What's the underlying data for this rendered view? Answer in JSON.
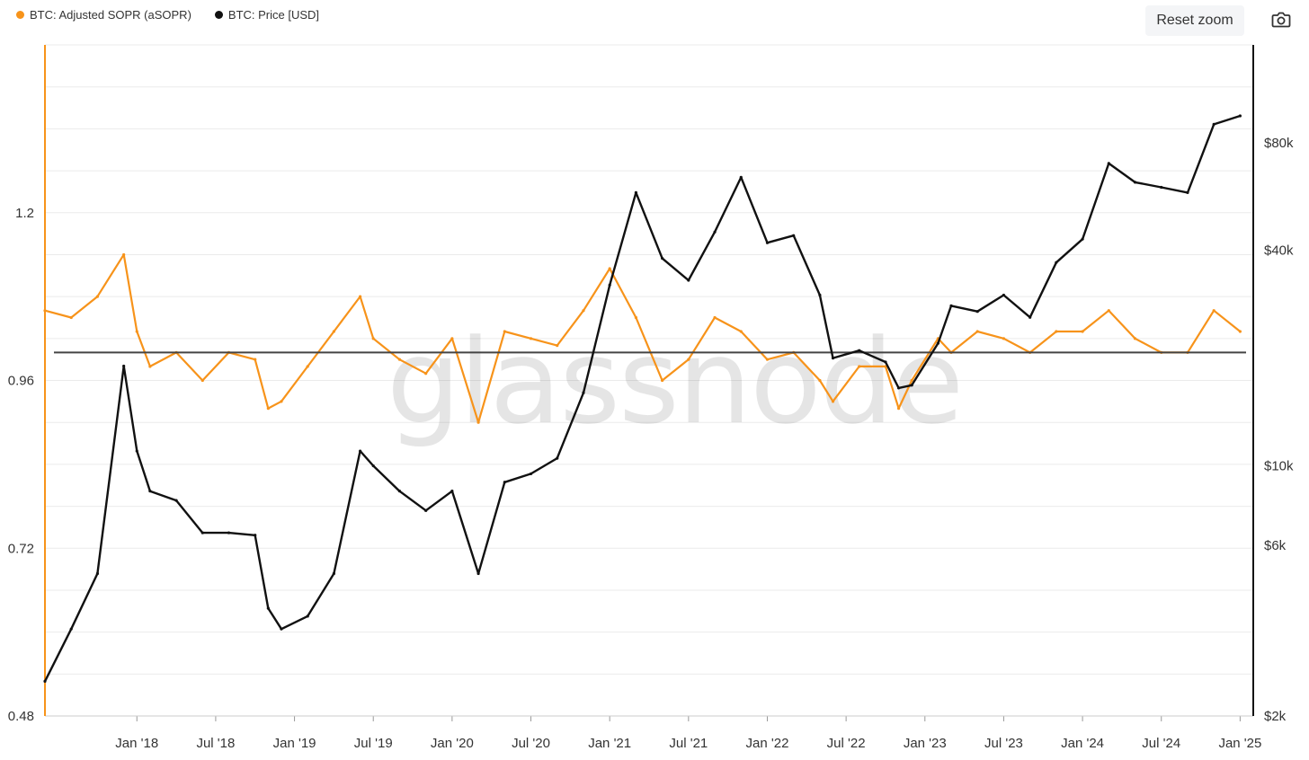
{
  "legend": {
    "series_1": "BTC: Adjusted SOPR (aSOPR)",
    "series_2": "BTC: Price [USD]"
  },
  "toolbar": {
    "reset_zoom_label": "Reset zoom",
    "screenshot_icon": "camera-icon"
  },
  "watermark": "glassnode",
  "colors": {
    "asopr": "#f7931a",
    "price": "#111111",
    "reference_line": "#444444",
    "grid": "#ebebeb"
  },
  "chart_data": {
    "type": "line",
    "x_ticks": [
      "Jan '18",
      "Jul '18",
      "Jan '19",
      "Jul '19",
      "Jan '20",
      "Jul '20",
      "Jan '21",
      "Jul '21",
      "Jan '22",
      "Jul '22",
      "Jan '23",
      "Jul '23",
      "Jan '24",
      "Jul '24",
      "Jan '25"
    ],
    "x_range": [
      "2017-06",
      "2025-02"
    ],
    "y_left": {
      "ticks": [
        "1.2",
        "0.96",
        "0.72",
        "0.48"
      ],
      "tick_values": [
        1.2,
        0.96,
        0.72,
        0.48
      ],
      "range": [
        0.48,
        1.44
      ]
    },
    "y_right": {
      "scale": "log",
      "ticks": [
        "$80k",
        "$40k",
        "$10k",
        "$6k",
        "$2k"
      ],
      "tick_values": [
        80000,
        40000,
        10000,
        6000,
        2000
      ],
      "range": [
        2000,
        150000
      ]
    },
    "reference_line": 1.0,
    "grid": true,
    "legend_position": "top-left",
    "series": [
      {
        "name": "BTC: Adjusted SOPR (aSOPR)",
        "axis": "left",
        "dates": [
          "2017-06",
          "2017-08",
          "2017-10",
          "2017-12",
          "2018-01",
          "2018-02",
          "2018-04",
          "2018-06",
          "2018-08",
          "2018-10",
          "2018-11",
          "2018-12",
          "2019-02",
          "2019-04",
          "2019-06",
          "2019-07",
          "2019-09",
          "2019-11",
          "2020-01",
          "2020-03",
          "2020-05",
          "2020-07",
          "2020-09",
          "2020-11",
          "2021-01",
          "2021-03",
          "2021-05",
          "2021-07",
          "2021-09",
          "2021-11",
          "2022-01",
          "2022-03",
          "2022-05",
          "2022-06",
          "2022-08",
          "2022-10",
          "2022-11",
          "2022-12",
          "2023-02",
          "2023-03",
          "2023-05",
          "2023-07",
          "2023-09",
          "2023-11",
          "2024-01",
          "2024-03",
          "2024-05",
          "2024-07",
          "2024-09",
          "2024-11",
          "2025-01"
        ],
        "values": [
          1.06,
          1.05,
          1.08,
          1.14,
          1.03,
          0.98,
          1.0,
          0.96,
          1.0,
          0.99,
          0.92,
          0.93,
          0.98,
          1.03,
          1.08,
          1.02,
          0.99,
          0.97,
          1.02,
          0.9,
          1.03,
          1.02,
          1.01,
          1.06,
          1.12,
          1.05,
          0.96,
          0.99,
          1.05,
          1.03,
          0.99,
          1.0,
          0.96,
          0.93,
          0.98,
          0.98,
          0.92,
          0.96,
          1.02,
          1.0,
          1.03,
          1.02,
          1.0,
          1.03,
          1.03,
          1.06,
          1.02,
          1.0,
          1.0,
          1.06,
          1.03
        ]
      },
      {
        "name": "BTC: Price [USD]",
        "axis": "right",
        "dates": [
          "2017-06",
          "2017-08",
          "2017-10",
          "2017-12",
          "2018-01",
          "2018-02",
          "2018-04",
          "2018-06",
          "2018-08",
          "2018-10",
          "2018-11",
          "2018-12",
          "2019-02",
          "2019-04",
          "2019-06",
          "2019-07",
          "2019-09",
          "2019-11",
          "2020-01",
          "2020-03",
          "2020-05",
          "2020-07",
          "2020-09",
          "2020-11",
          "2021-01",
          "2021-03",
          "2021-05",
          "2021-07",
          "2021-09",
          "2021-11",
          "2022-01",
          "2022-03",
          "2022-05",
          "2022-06",
          "2022-08",
          "2022-10",
          "2022-11",
          "2022-12",
          "2023-02",
          "2023-03",
          "2023-05",
          "2023-07",
          "2023-09",
          "2023-11",
          "2024-01",
          "2024-03",
          "2024-05",
          "2024-07",
          "2024-09",
          "2024-11",
          "2025-01"
        ],
        "values": [
          2500,
          3500,
          5000,
          19000,
          11000,
          8500,
          8000,
          6500,
          6500,
          6400,
          4000,
          3500,
          3800,
          5000,
          11000,
          10000,
          8500,
          7500,
          8500,
          5000,
          9000,
          9500,
          10500,
          16000,
          32000,
          58000,
          38000,
          33000,
          45000,
          64000,
          42000,
          44000,
          30000,
          20000,
          21000,
          19500,
          16500,
          16800,
          22000,
          28000,
          27000,
          30000,
          26000,
          37000,
          43000,
          70000,
          62000,
          60000,
          58000,
          90000,
          95000
        ]
      }
    ]
  }
}
